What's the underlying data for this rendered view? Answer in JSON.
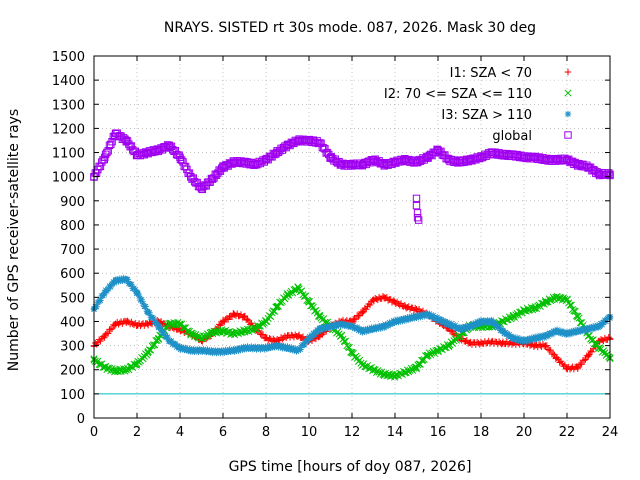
{
  "chart_data": {
    "type": "scatter",
    "title": "NRAYS. SISTED rt 30s mode. 087, 2026. Mask 30 deg",
    "xlabel": "GPS time [hours of doy 087, 2026]",
    "ylabel": "Number of GPS receiver-satellite rays",
    "xlim": [
      0,
      24
    ],
    "ylim": [
      0,
      1500
    ],
    "x_ticks": [
      0,
      2,
      4,
      6,
      8,
      10,
      12,
      14,
      16,
      18,
      20,
      22,
      24
    ],
    "y_ticks": [
      0,
      100,
      200,
      300,
      400,
      500,
      600,
      700,
      800,
      900,
      1000,
      1100,
      1200,
      1300,
      1400,
      1500
    ],
    "grid": true,
    "legend_position": "top-right",
    "reference_line": {
      "y": 100,
      "color": "#00c0c0"
    },
    "series": [
      {
        "name": "I1: SZA < 70",
        "marker": "+",
        "color": "#ff0000",
        "x": [
          0,
          0.5,
          1,
          1.5,
          2,
          2.5,
          3,
          3.5,
          4,
          4.5,
          5,
          5.5,
          6,
          6.5,
          7,
          7.5,
          8,
          8.5,
          9,
          9.5,
          10,
          10.5,
          11,
          11.5,
          12,
          12.5,
          13,
          13.5,
          14,
          14.5,
          15,
          15.5,
          16,
          16.5,
          17,
          17.5,
          18,
          18.5,
          19,
          19.5,
          20,
          20.5,
          21,
          21.5,
          22,
          22.5,
          23,
          23.5,
          24
        ],
        "y": [
          300,
          340,
          390,
          400,
          385,
          390,
          400,
          380,
          365,
          350,
          320,
          350,
          400,
          430,
          420,
          370,
          330,
          320,
          340,
          340,
          320,
          340,
          380,
          400,
          400,
          440,
          490,
          500,
          480,
          460,
          450,
          430,
          400,
          370,
          330,
          310,
          310,
          315,
          310,
          310,
          310,
          300,
          300,
          250,
          205,
          210,
          260,
          320,
          330
        ]
      },
      {
        "name": "I2: 70 <= SZA <= 110",
        "marker": "x",
        "color": "#00c000",
        "x": [
          0,
          0.5,
          1,
          1.5,
          2,
          2.5,
          3,
          3.5,
          4,
          4.5,
          5,
          5.5,
          6,
          6.5,
          7,
          7.5,
          8,
          8.5,
          9,
          9.5,
          10,
          10.5,
          11,
          11.5,
          12,
          12.5,
          13,
          13.5,
          14,
          14.5,
          15,
          15.5,
          16,
          16.5,
          17,
          17.5,
          18,
          18.5,
          19,
          19.5,
          20,
          20.5,
          21,
          21.5,
          22,
          22.5,
          23,
          23.5,
          24
        ],
        "y": [
          240,
          210,
          195,
          200,
          225,
          270,
          330,
          390,
          390,
          350,
          330,
          355,
          360,
          350,
          360,
          370,
          400,
          460,
          510,
          540,
          480,
          420,
          380,
          340,
          270,
          220,
          200,
          180,
          175,
          190,
          210,
          260,
          280,
          300,
          340,
          380,
          380,
          380,
          400,
          420,
          445,
          455,
          480,
          500,
          490,
          420,
          340,
          290,
          250
        ]
      },
      {
        "name": "I3: SZA > 110",
        "marker": "*",
        "color": "#1e90c8",
        "x": [
          0,
          0.5,
          1,
          1.5,
          2,
          2.5,
          3,
          3.5,
          4,
          4.5,
          5,
          5.5,
          6,
          6.5,
          7,
          7.5,
          8,
          8.5,
          9,
          9.5,
          10,
          10.5,
          11,
          11.5,
          12,
          12.5,
          13,
          13.5,
          14,
          14.5,
          15,
          15.5,
          16,
          16.5,
          17,
          17.5,
          18,
          18.5,
          19,
          19.5,
          20,
          20.5,
          21,
          21.5,
          22,
          22.5,
          23,
          23.5,
          24
        ],
        "y": [
          450,
          520,
          570,
          575,
          520,
          440,
          380,
          320,
          290,
          280,
          280,
          275,
          275,
          280,
          290,
          290,
          290,
          300,
          290,
          280,
          330,
          370,
          380,
          390,
          380,
          360,
          370,
          380,
          400,
          410,
          420,
          430,
          410,
          390,
          370,
          380,
          400,
          400,
          360,
          330,
          320,
          330,
          340,
          360,
          350,
          360,
          370,
          380,
          420
        ]
      },
      {
        "name": "global",
        "marker": "square",
        "color": "#a000f0",
        "x": [
          0,
          0.5,
          1,
          1.5,
          2,
          2.5,
          3,
          3.5,
          4,
          4.5,
          5,
          5.5,
          6,
          6.5,
          7,
          7.5,
          8,
          8.5,
          9,
          9.5,
          10,
          10.5,
          11,
          11.5,
          12,
          12.5,
          13,
          13.5,
          14,
          14.5,
          15,
          15.5,
          16,
          16.5,
          17,
          17.5,
          18,
          18.5,
          19,
          19.5,
          20,
          20.5,
          21,
          21.5,
          22,
          22.5,
          23,
          23.5,
          24
        ],
        "y": [
          1000,
          1080,
          1180,
          1150,
          1090,
          1100,
          1110,
          1130,
          1080,
          1000,
          950,
          990,
          1040,
          1060,
          1060,
          1050,
          1070,
          1100,
          1130,
          1150,
          1150,
          1140,
          1080,
          1050,
          1050,
          1050,
          1070,
          1050,
          1060,
          1070,
          1060,
          1080,
          1110,
          1070,
          1060,
          1070,
          1080,
          1100,
          1090,
          1090,
          1080,
          1080,
          1070,
          1070,
          1070,
          1050,
          1040,
          1010,
          1010
        ]
      }
    ],
    "outliers": {
      "global": {
        "x": [
          15.0,
          15.0,
          15.05,
          15.05,
          15.1
        ],
        "y": [
          910,
          880,
          850,
          830,
          820
        ]
      }
    }
  }
}
